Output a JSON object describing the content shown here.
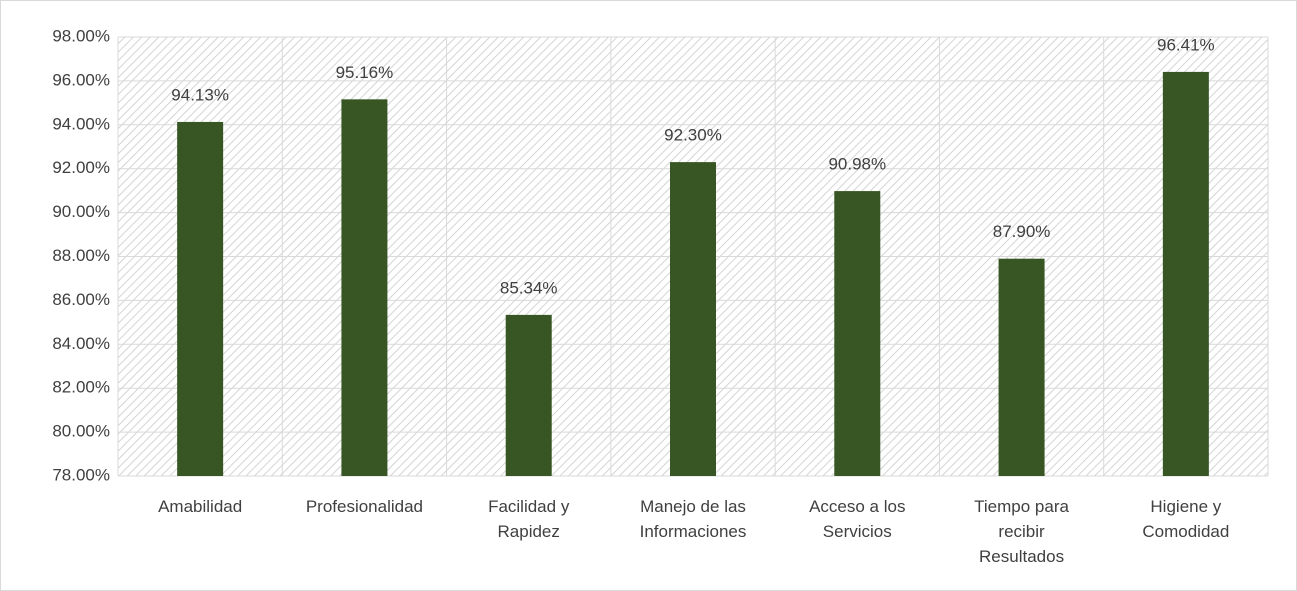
{
  "chart_data": {
    "type": "bar",
    "categories": [
      "Amabilidad",
      "Profesionalidad",
      "Facilidad y Rapidez",
      "Manejo de las Informaciones",
      "Acceso a los Servicios",
      "Tiempo para recibir Resultados",
      "Higiene y Comodidad"
    ],
    "values": [
      94.13,
      95.16,
      85.34,
      92.3,
      90.98,
      87.9,
      96.41
    ],
    "value_labels": [
      "94.13%",
      "95.16%",
      "85.34%",
      "92.30%",
      "90.98%",
      "87.90%",
      "96.41%"
    ],
    "color": "#375623",
    "ylim": [
      78,
      98
    ],
    "yticks": [
      {
        "value": 78,
        "label": "78.00%"
      },
      {
        "value": 80,
        "label": "80.00%"
      },
      {
        "value": 82,
        "label": "82.00%"
      },
      {
        "value": 84,
        "label": "84.00%"
      },
      {
        "value": 86,
        "label": "86.00%"
      },
      {
        "value": 88,
        "label": "88.00%"
      },
      {
        "value": 90,
        "label": "90.00%"
      },
      {
        "value": 92,
        "label": "92.00%"
      },
      {
        "value": 94,
        "label": "94.00%"
      },
      {
        "value": 96,
        "label": "96.00%"
      },
      {
        "value": 98,
        "label": "98.00%"
      }
    ],
    "grid": true
  }
}
